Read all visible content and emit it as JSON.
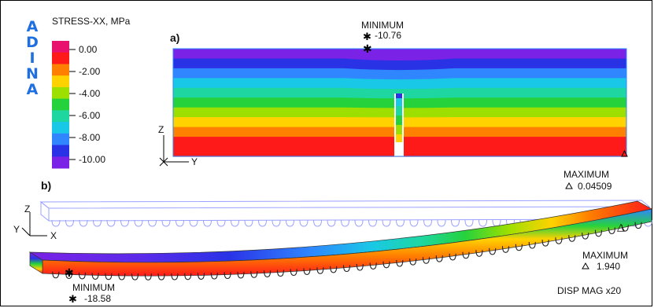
{
  "logo": {
    "letters": [
      "A",
      "D",
      "I",
      "N",
      "A"
    ]
  },
  "legend": {
    "title": "STRESS-XX, MPa",
    "ticks": [
      "0.00",
      "-2.00",
      "-4.00",
      "-6.00",
      "-8.00",
      "-10.00"
    ],
    "colors": [
      "#e8116d",
      "#ff1a1a",
      "#ff7f00",
      "#ffd200",
      "#9de000",
      "#26d23c",
      "#1ed7a0",
      "#19c8e6",
      "#2f86ff",
      "#2a32e6",
      "#7a22e6"
    ]
  },
  "panel_a": {
    "label": "a)",
    "minimum": {
      "label": "MINIMUM",
      "value": "-10.76"
    },
    "axes": {
      "z": "Z",
      "y": "Y"
    }
  },
  "panel_b": {
    "label": "b)",
    "maximum_top": {
      "label": "MAXIMUM",
      "value": "0.04509"
    },
    "maximum_right": {
      "label": "MAXIMUM",
      "value": "1.940"
    },
    "minimum": {
      "label": "MINIMUM",
      "value": "-18.58"
    },
    "axes": {
      "z": "Z",
      "y": "Y",
      "x": "X"
    },
    "disp_mag": "DISP MAG x20"
  },
  "band_colors_a": [
    "#7a22e6",
    "#2a32e6",
    "#2f86ff",
    "#19c8e6",
    "#1ed7a0",
    "#26d23c",
    "#9de000",
    "#ffd200",
    "#ff7f00",
    "#ff1a1a",
    "#ff1a1a"
  ],
  "band_colors_b": [
    "#7a22e6",
    "#2a32e6",
    "#2f86ff",
    "#19c8e6",
    "#1ed7a0",
    "#26d23c",
    "#9de000",
    "#ffd200",
    "#ff7f00",
    "#ff1a1a",
    "#e8116d"
  ]
}
